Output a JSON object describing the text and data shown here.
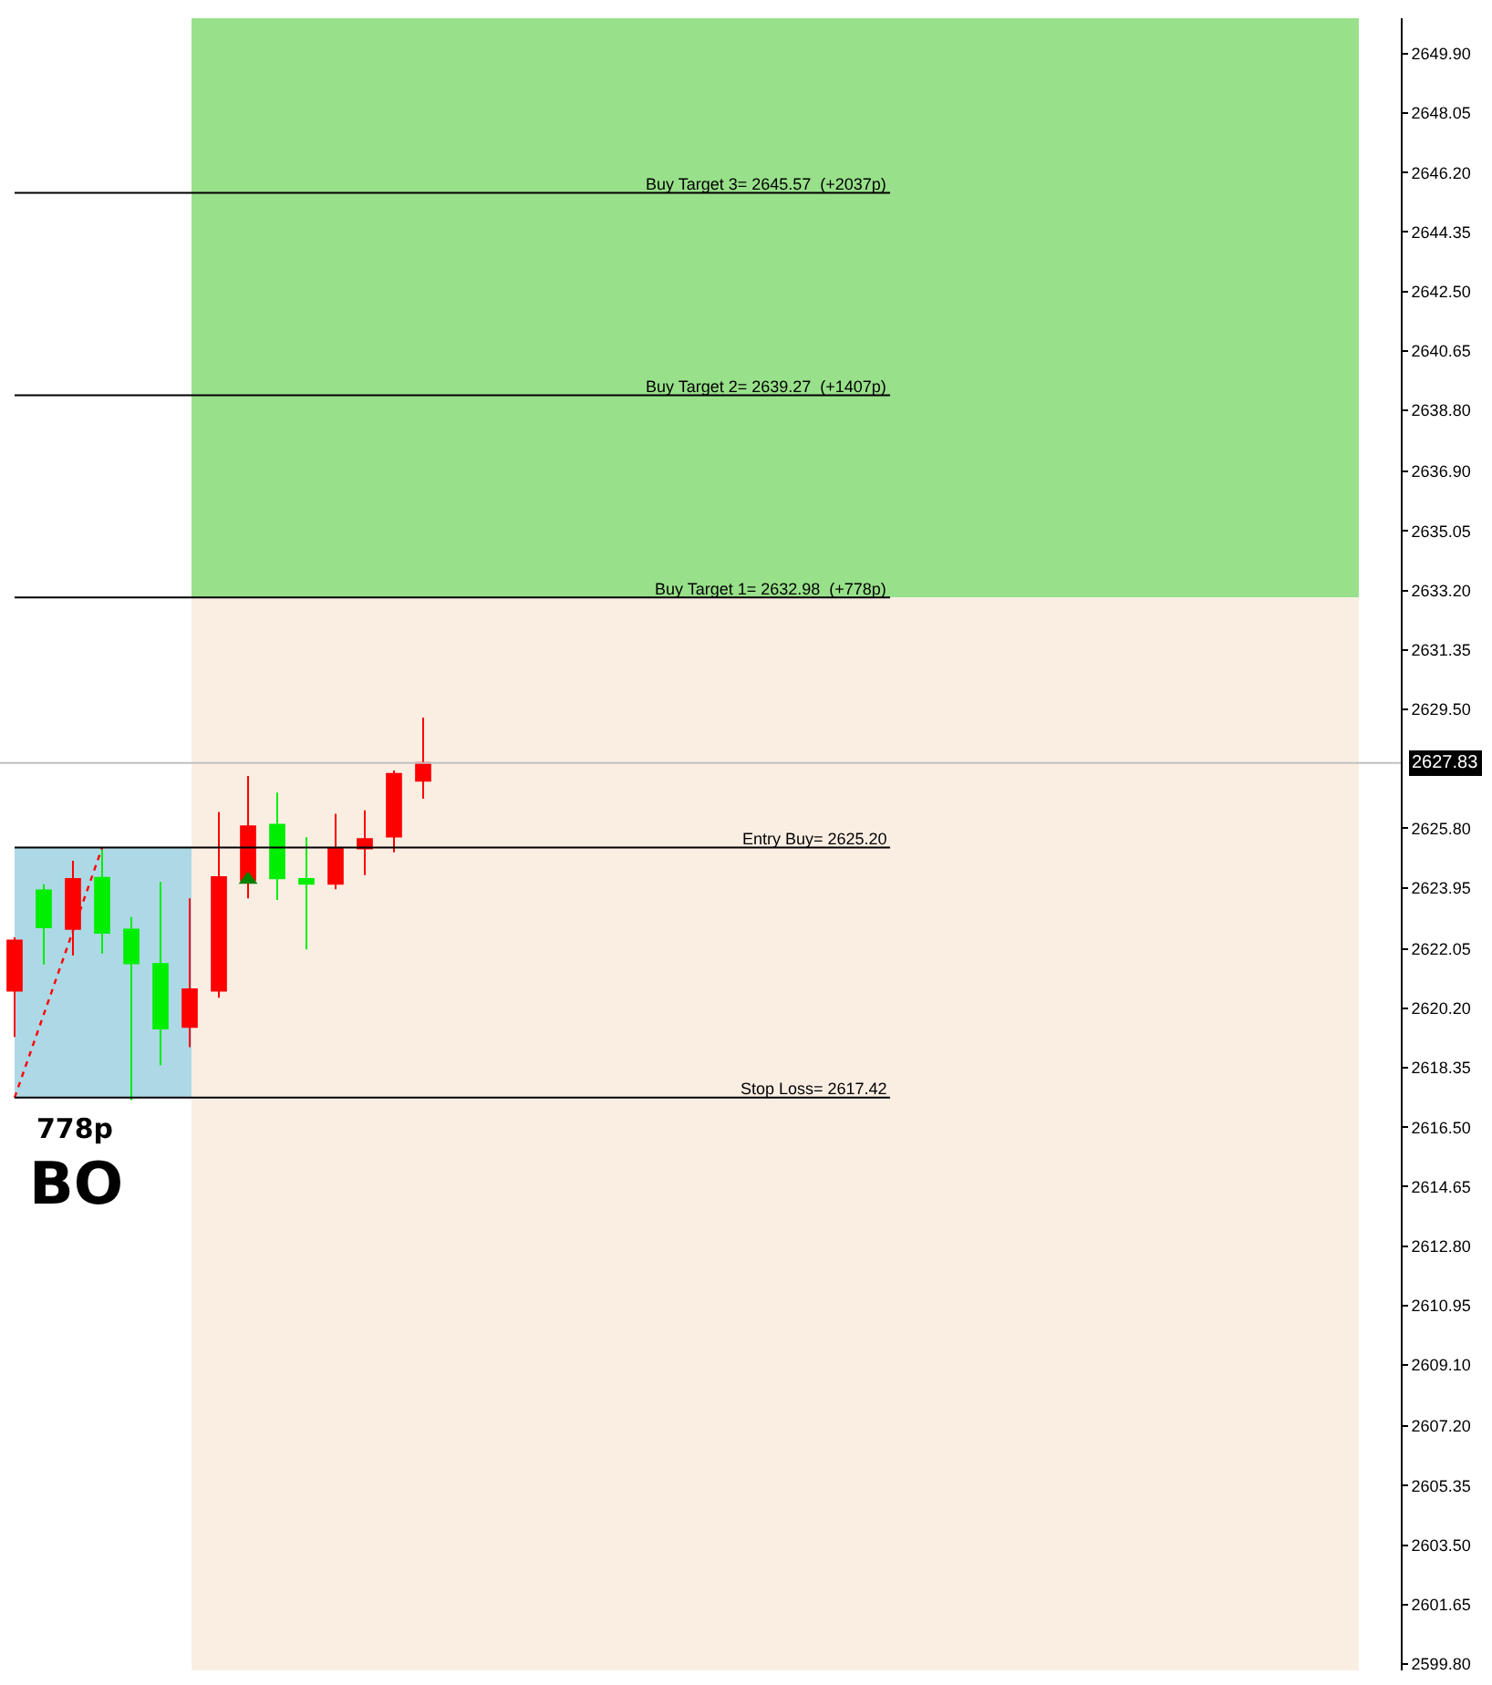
{
  "chart_data": {
    "type": "candlestick",
    "categories": [
      null,
      null,
      null,
      null,
      null,
      null,
      null,
      null,
      null,
      null,
      null,
      null,
      null,
      null,
      null,
      null,
      null,
      null,
      null,
      null,
      null,
      null,
      null,
      null,
      null,
      null,
      null,
      null,
      null,
      null,
      null,
      null,
      null,
      null,
      null,
      null,
      null,
      null,
      null,
      null,
      null,
      null,
      null,
      null,
      null,
      null,
      null,
      null
    ],
    "ohlc": [
      [
        2620.75,
        2622.41,
        2619.31,
        2622.31
      ],
      [
        2623.87,
        2624.06,
        2621.56,
        2622.72
      ],
      [
        2622.67,
        2624.79,
        2621.84,
        2624.22
      ],
      [
        2624.26,
        2625.13,
        2621.9,
        2622.55
      ],
      [
        2622.65,
        2623.04,
        2617.34,
        2621.6
      ],
      [
        2621.58,
        2624.13,
        2618.43,
        2619.57
      ],
      [
        2619.62,
        2623.62,
        2618.99,
        2620.79
      ],
      [
        2620.75,
        2626.31,
        2620.53,
        2624.28
      ],
      [
        2624.19,
        2627.43,
        2623.62,
        2625.86
      ],
      [
        2625.91,
        2626.91,
        2623.57,
        2624.24
      ],
      [
        2624.22,
        2625.52,
        2622.03,
        2624.07
      ],
      [
        2624.07,
        2626.25,
        2623.9,
        2625.17
      ],
      [
        2625.17,
        2626.36,
        2624.34,
        2625.46
      ],
      [
        2625.54,
        2627.6,
        2625.05,
        2627.49
      ],
      [
        2627.28,
        2629.24,
        2626.72,
        2627.83
      ],
      null,
      null,
      null,
      null,
      null,
      null,
      null,
      null,
      null,
      null,
      null,
      null,
      null,
      null,
      null,
      null,
      null,
      null,
      null,
      null,
      null,
      null,
      null,
      null,
      null,
      null,
      null,
      null,
      null,
      null,
      null,
      null,
      null
    ],
    "colors": [
      "#ff0000",
      "#00ee00",
      "#ff0000",
      "#00ee00",
      "#00ee00",
      "#00ee00",
      "#ff0000",
      "#ff0000",
      "#ff0000",
      "#00ee00",
      "#00ee00",
      "#ff0000",
      "#ff0000",
      "#ff0000",
      "#ff0000",
      null,
      null,
      null,
      null,
      null,
      null,
      null,
      null,
      null,
      null,
      null,
      null,
      null,
      null,
      null,
      null,
      null,
      null,
      null,
      null,
      null,
      null,
      null,
      null,
      null,
      null,
      null,
      null,
      null,
      null,
      null,
      null,
      null
    ],
    "series": [
      {
        "type": "line",
        "color": "#ff0000",
        "line_style": "dotted",
        "values": [
          2617.42,
          null,
          null,
          2625.2,
          null,
          null,
          null,
          null,
          null,
          null,
          null,
          null,
          null,
          null,
          null,
          null,
          null,
          null,
          null,
          null,
          null,
          null,
          null,
          null,
          null,
          null,
          null,
          null,
          null,
          null,
          null,
          null,
          null,
          null,
          null,
          null,
          null,
          null,
          null,
          null,
          null,
          null,
          null,
          null,
          null,
          null,
          null,
          null
        ]
      },
      {
        "type": "scatter",
        "color": "#008000",
        "marker": "triangle",
        "values": [
          null,
          null,
          null,
          null,
          null,
          null,
          null,
          null,
          2624.2,
          null,
          null,
          null,
          null,
          null,
          null,
          null,
          null,
          null,
          null,
          null,
          null,
          null,
          null,
          null,
          null,
          null,
          null,
          null,
          null,
          null,
          null,
          null,
          null,
          null,
          null,
          null,
          null,
          null,
          null,
          null,
          null,
          null,
          null,
          null,
          null,
          null,
          null,
          null
        ]
      }
    ],
    "ylim": [
      2599.6,
      2651.0
    ],
    "yticks": [
      {
        "value": 2649.9,
        "label": "2649.90"
      },
      {
        "value": 2648.05,
        "label": "2648.05"
      },
      {
        "value": 2646.2,
        "label": "2646.20"
      },
      {
        "value": 2644.35,
        "label": "2644.35"
      },
      {
        "value": 2642.5,
        "label": "2642.50"
      },
      {
        "value": 2640.65,
        "label": "2640.65"
      },
      {
        "value": 2638.8,
        "label": "2638.80"
      },
      {
        "value": 2636.9,
        "label": "2636.90"
      },
      {
        "value": 2635.05,
        "label": "2635.05"
      },
      {
        "value": 2633.2,
        "label": "2633.20"
      },
      {
        "value": 2631.35,
        "label": "2631.35"
      },
      {
        "value": 2629.5,
        "label": "2629.50"
      },
      {
        "value": 2625.8,
        "label": "2625.80"
      },
      {
        "value": 2623.95,
        "label": "2623.95"
      },
      {
        "value": 2622.05,
        "label": "2622.05"
      },
      {
        "value": 2620.2,
        "label": "2620.20"
      },
      {
        "value": 2618.35,
        "label": "2618.35"
      },
      {
        "value": 2616.5,
        "label": "2616.50"
      },
      {
        "value": 2614.65,
        "label": "2614.65"
      },
      {
        "value": 2612.8,
        "label": "2612.80"
      },
      {
        "value": 2610.95,
        "label": "2610.95"
      },
      {
        "value": 2609.1,
        "label": "2609.10"
      },
      {
        "value": 2607.2,
        "label": "2607.20"
      },
      {
        "value": 2605.35,
        "label": "2605.35"
      },
      {
        "value": 2603.5,
        "label": "2603.50"
      },
      {
        "value": 2601.65,
        "label": "2601.65"
      },
      {
        "value": 2599.8,
        "label": "2599.80"
      }
    ],
    "tick_labels": "y",
    "bands": [
      {
        "axis": "y",
        "from": 2632.98,
        "to": 2651.0,
        "color": "#98e08a"
      },
      {
        "axis": "y",
        "from": 2599.6,
        "to": 2632.98,
        "color": "#faeee3"
      },
      {
        "axis": "y",
        "from": 2617.42,
        "to": 2625.2,
        "color": "#add8e6"
      }
    ],
    "ref_lines": [
      {
        "axis": "y",
        "value": 2645.57,
        "label": "Buy Target 3= 2645.57  (+2037p)",
        "color": "#000000"
      },
      {
        "axis": "y",
        "value": 2639.27,
        "label": "Buy Target 2= 2639.27  (+1407p)",
        "color": "#000000"
      },
      {
        "axis": "y",
        "value": 2632.98,
        "label": "Buy Target 1= 2632.98  (+778p)",
        "color": "#000000"
      },
      {
        "axis": "y",
        "value": 2625.2,
        "label": "Entry Buy= 2625.20",
        "color": "#000000"
      },
      {
        "axis": "y",
        "value": 2617.42,
        "label": "Stop Loss= 2617.42",
        "color": "#000000"
      },
      {
        "axis": "y",
        "value": 2627.83,
        "label": "2627.83",
        "color": "#c0c0c0"
      }
    ],
    "annotations": [
      "778p",
      "BO"
    ],
    "grid": false
  }
}
